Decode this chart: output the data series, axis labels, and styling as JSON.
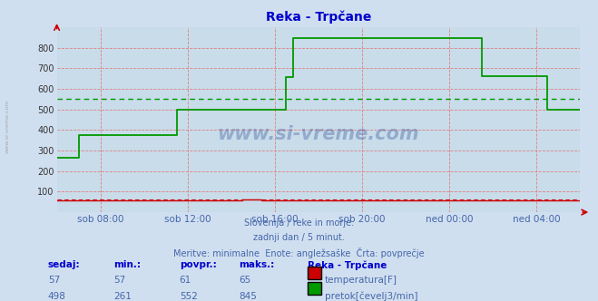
{
  "title": "Reka - Trpčane",
  "title_color": "#0000cc",
  "bg_color": "#d0dff0",
  "plot_bg_color": "#c8dcea",
  "grid_color": "#e08080",
  "ylim": [
    0,
    900
  ],
  "yticks": [
    100,
    200,
    300,
    400,
    500,
    600,
    700,
    800
  ],
  "xtick_labels": [
    "sob 08:00",
    "sob 12:00",
    "sob 16:00",
    "sob 20:00",
    "ned 00:00",
    "ned 04:00"
  ],
  "xtick_positions": [
    2,
    6,
    10,
    14,
    18,
    22
  ],
  "total_hours": 24,
  "flow_color": "#009900",
  "temp_color": "#cc0000",
  "avg_flow": 552,
  "avg_temp": 61,
  "watermark": "www.si-vreme.com",
  "watermark_color": "#1a3a8a",
  "footer_lines": [
    "Slovenija / reke in morje.",
    "zadnji dan / 5 minut.",
    "Meritve: minimalne  Enote: angležsaške  Črta: povprečje"
  ],
  "footer_color": "#4466aa",
  "legend_title": "Reka - Trpčane",
  "legend_color": "#0000cc",
  "temp_label": "temperatura[F]",
  "flow_label": "pretok[čevelj3/min]",
  "stats_headers": [
    "sedaj:",
    "min.:",
    "povpr.:",
    "maks.:"
  ],
  "stats_header_color": "#0000cc",
  "temp_stats": [
    57,
    57,
    61,
    65
  ],
  "flow_stats": [
    498,
    261,
    552,
    845
  ],
  "stats_color": "#4466aa",
  "flow_x": [
    0,
    1.0,
    1.0,
    1.5,
    1.5,
    5.5,
    5.5,
    9.0,
    9.0,
    10.5,
    10.5,
    10.83,
    10.83,
    13.3,
    13.3,
    19.5,
    19.5,
    20.5,
    20.5,
    22.5,
    22.5,
    24
  ],
  "flow_y": [
    265,
    265,
    375,
    375,
    375,
    375,
    500,
    500,
    500,
    500,
    655,
    655,
    845,
    845,
    845,
    845,
    660,
    660,
    660,
    660,
    500,
    500
  ],
  "temp_x": [
    0,
    8.3,
    8.3,
    8.5,
    8.5,
    9.4,
    9.4,
    9.6,
    9.6,
    24
  ],
  "temp_y": [
    57,
    57,
    57,
    57,
    62,
    62,
    57,
    57,
    57,
    57
  ],
  "arrow_color": "#cc0000",
  "left_text": "www.si-vreme.com",
  "left_text_color": "#aaaaaa"
}
